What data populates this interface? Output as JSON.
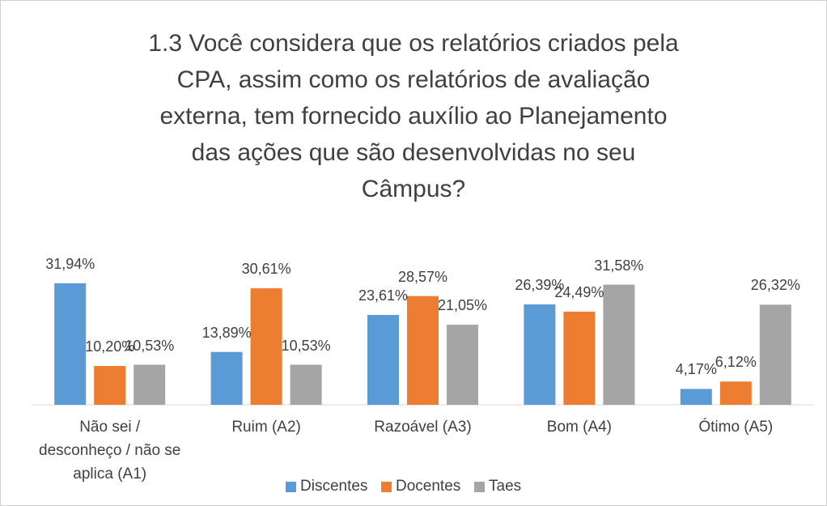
{
  "chart_data": {
    "type": "bar",
    "title": "1.3 Você considera que os relatórios criados pela CPA, assim como os relatórios de avaliação externa, tem fornecido auxílio ao Planejamento das ações que são desenvolvidas no seu Câmpus?",
    "categories": [
      "Não sei / desconheço / não se aplica (A1)",
      "Ruim (A2)",
      "Razoável (A3)",
      "Bom (A4)",
      "Ótimo (A5)"
    ],
    "series": [
      {
        "name": "Discentes",
        "color": "#5b9bd5",
        "values": [
          31.94,
          13.89,
          23.61,
          26.39,
          4.17
        ],
        "value_labels": [
          "31,94%",
          "13,89%",
          "23,61%",
          "26,39%",
          "4,17%"
        ]
      },
      {
        "name": "Docentes",
        "color": "#ed7d31",
        "values": [
          10.2,
          30.61,
          28.57,
          24.49,
          6.12
        ],
        "value_labels": [
          "10,20%",
          "30,61%",
          "28,57%",
          "24,49%",
          "6,12%"
        ]
      },
      {
        "name": "Taes",
        "color": "#a5a5a5",
        "values": [
          10.53,
          10.53,
          21.05,
          31.58,
          26.32
        ],
        "value_labels": [
          "10,53%",
          "10,53%",
          "21,05%",
          "31,58%",
          "26,32%"
        ]
      }
    ],
    "legend": "bottom"
  }
}
